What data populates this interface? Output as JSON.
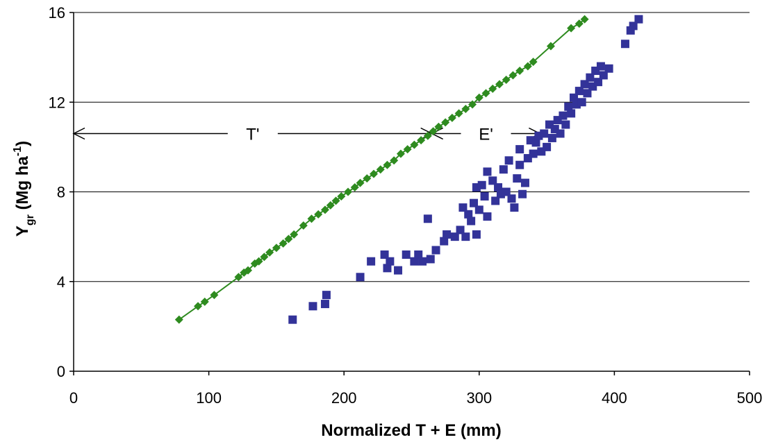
{
  "chart_data": {
    "type": "scatter",
    "title": "",
    "xlabel": "Normalized T + E (mm)",
    "ylabel": {
      "base": "Y",
      "sub": "gr",
      "unit_pre": " (Mg ha",
      "unit_sup": "-1",
      "unit_post": ")"
    },
    "xlim": [
      0,
      500
    ],
    "ylim": [
      0,
      16
    ],
    "xticks": [
      0,
      100,
      200,
      300,
      400,
      500
    ],
    "yticks": [
      0,
      4,
      8,
      12,
      16
    ],
    "grid": "horizontal",
    "legend": "none",
    "annotations": [
      {
        "text": "T'",
        "y": 10.6,
        "from_x": 0,
        "to_x": 265
      },
      {
        "text": "E'",
        "y": 10.6,
        "from_x": 265,
        "to_x": 345
      }
    ],
    "series": [
      {
        "marker": "diamond",
        "color": "#2e8b1f",
        "line": true,
        "points": [
          [
            78,
            2.3
          ],
          [
            92,
            2.9
          ],
          [
            97,
            3.1
          ],
          [
            104,
            3.4
          ],
          [
            122,
            4.2
          ],
          [
            126,
            4.4
          ],
          [
            129,
            4.5
          ],
          [
            134,
            4.8
          ],
          [
            137,
            4.9
          ],
          [
            141,
            5.1
          ],
          [
            145,
            5.3
          ],
          [
            150,
            5.5
          ],
          [
            155,
            5.7
          ],
          [
            159,
            5.9
          ],
          [
            163,
            6.1
          ],
          [
            170,
            6.5
          ],
          [
            176,
            6.8
          ],
          [
            181,
            7.0
          ],
          [
            186,
            7.2
          ],
          [
            190,
            7.4
          ],
          [
            194,
            7.6
          ],
          [
            198,
            7.8
          ],
          [
            203,
            8.0
          ],
          [
            208,
            8.2
          ],
          [
            212,
            8.4
          ],
          [
            217,
            8.6
          ],
          [
            222,
            8.8
          ],
          [
            227,
            9.0
          ],
          [
            232,
            9.2
          ],
          [
            237,
            9.4
          ],
          [
            242,
            9.7
          ],
          [
            247,
            9.9
          ],
          [
            252,
            10.1
          ],
          [
            257,
            10.3
          ],
          [
            262,
            10.5
          ],
          [
            266,
            10.7
          ],
          [
            270,
            10.9
          ],
          [
            275,
            11.1
          ],
          [
            280,
            11.3
          ],
          [
            285,
            11.5
          ],
          [
            290,
            11.7
          ],
          [
            295,
            11.9
          ],
          [
            300,
            12.2
          ],
          [
            305,
            12.4
          ],
          [
            310,
            12.6
          ],
          [
            315,
            12.8
          ],
          [
            320,
            13.0
          ],
          [
            325,
            13.2
          ],
          [
            330,
            13.4
          ],
          [
            336,
            13.6
          ],
          [
            340,
            13.8
          ],
          [
            353,
            14.5
          ],
          [
            368,
            15.3
          ],
          [
            374,
            15.5
          ],
          [
            378,
            15.7
          ]
        ]
      },
      {
        "marker": "square",
        "color": "#333399",
        "line": false,
        "points": [
          [
            162,
            2.3
          ],
          [
            177,
            2.9
          ],
          [
            186,
            3.0
          ],
          [
            187,
            3.4
          ],
          [
            212,
            4.2
          ],
          [
            220,
            4.9
          ],
          [
            230,
            5.2
          ],
          [
            232,
            4.6
          ],
          [
            234,
            4.9
          ],
          [
            240,
            4.5
          ],
          [
            246,
            5.2
          ],
          [
            252,
            4.9
          ],
          [
            255,
            5.2
          ],
          [
            258,
            4.9
          ],
          [
            262,
            6.8
          ],
          [
            264,
            5.0
          ],
          [
            268,
            5.4
          ],
          [
            274,
            5.8
          ],
          [
            276,
            6.1
          ],
          [
            282,
            6.0
          ],
          [
            286,
            6.3
          ],
          [
            288,
            7.3
          ],
          [
            290,
            6.0
          ],
          [
            292,
            7.0
          ],
          [
            294,
            6.7
          ],
          [
            296,
            7.5
          ],
          [
            298,
            6.1
          ],
          [
            298,
            8.2
          ],
          [
            300,
            7.2
          ],
          [
            302,
            8.3
          ],
          [
            304,
            7.8
          ],
          [
            306,
            8.9
          ],
          [
            306,
            6.9
          ],
          [
            310,
            8.5
          ],
          [
            312,
            7.6
          ],
          [
            314,
            8.2
          ],
          [
            316,
            7.9
          ],
          [
            318,
            9.0
          ],
          [
            320,
            8.0
          ],
          [
            322,
            9.4
          ],
          [
            324,
            7.7
          ],
          [
            326,
            7.3
          ],
          [
            328,
            8.6
          ],
          [
            330,
            9.2
          ],
          [
            330,
            9.9
          ],
          [
            332,
            7.9
          ],
          [
            334,
            8.4
          ],
          [
            336,
            9.5
          ],
          [
            338,
            10.3
          ],
          [
            340,
            9.7
          ],
          [
            342,
            10.2
          ],
          [
            344,
            10.5
          ],
          [
            346,
            9.8
          ],
          [
            348,
            10.6
          ],
          [
            350,
            10.0
          ],
          [
            352,
            11.0
          ],
          [
            354,
            10.4
          ],
          [
            356,
            10.8
          ],
          [
            358,
            11.2
          ],
          [
            360,
            10.6
          ],
          [
            362,
            11.4
          ],
          [
            364,
            11.0
          ],
          [
            366,
            11.8
          ],
          [
            368,
            11.5
          ],
          [
            370,
            12.2
          ],
          [
            372,
            11.9
          ],
          [
            374,
            12.5
          ],
          [
            376,
            12.0
          ],
          [
            378,
            12.8
          ],
          [
            380,
            12.4
          ],
          [
            382,
            13.1
          ],
          [
            384,
            12.7
          ],
          [
            386,
            13.4
          ],
          [
            388,
            12.9
          ],
          [
            390,
            13.6
          ],
          [
            392,
            13.2
          ],
          [
            396,
            13.5
          ],
          [
            408,
            14.6
          ],
          [
            412,
            15.2
          ],
          [
            414,
            15.4
          ],
          [
            418,
            15.7
          ]
        ]
      }
    ]
  }
}
